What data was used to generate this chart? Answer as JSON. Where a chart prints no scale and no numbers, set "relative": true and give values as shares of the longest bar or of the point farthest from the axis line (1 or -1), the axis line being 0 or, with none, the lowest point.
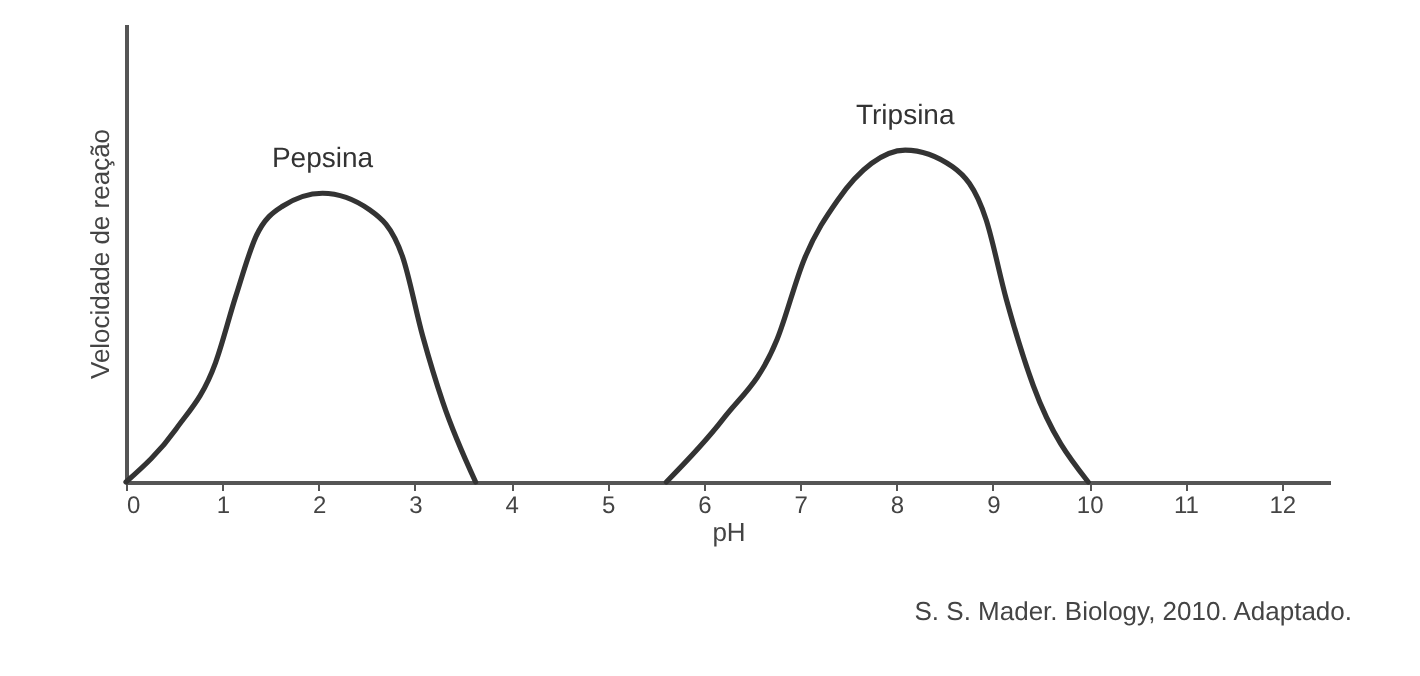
{
  "chart_data": {
    "type": "line",
    "relative": true,
    "xlabel": "pH",
    "ylabel": "Velocidade de reação",
    "xlim": [
      0,
      12.5
    ],
    "xticks": [
      0,
      1,
      2,
      3,
      4,
      5,
      6,
      7,
      8,
      9,
      10,
      11,
      12
    ],
    "grid": false,
    "marker": "none",
    "line_style": "solid",
    "annotations": [
      "S. S. Mader. Biology, 2010. Adaptado."
    ],
    "series": [
      {
        "name": "Pepsina",
        "color": "#333333",
        "x": [
          0,
          0.52,
          0.93,
          1.14,
          1.35,
          1.62,
          2.04,
          2.53,
          2.87,
          3.08,
          3.29,
          3.63
        ],
        "values": [
          0,
          0.16,
          0.36,
          0.56,
          0.74,
          0.83,
          0.87,
          0.82,
          0.68,
          0.44,
          0.24,
          0
        ]
      },
      {
        "name": "Tripsina",
        "color": "#333333",
        "x": [
          5.61,
          6.2,
          6.76,
          7.04,
          7.39,
          7.74,
          8.09,
          8.58,
          8.93,
          9.14,
          9.42,
          9.99
        ],
        "values": [
          0,
          0.19,
          0.43,
          0.67,
          0.85,
          0.96,
          1,
          0.95,
          0.79,
          0.55,
          0.29,
          0
        ]
      }
    ]
  }
}
